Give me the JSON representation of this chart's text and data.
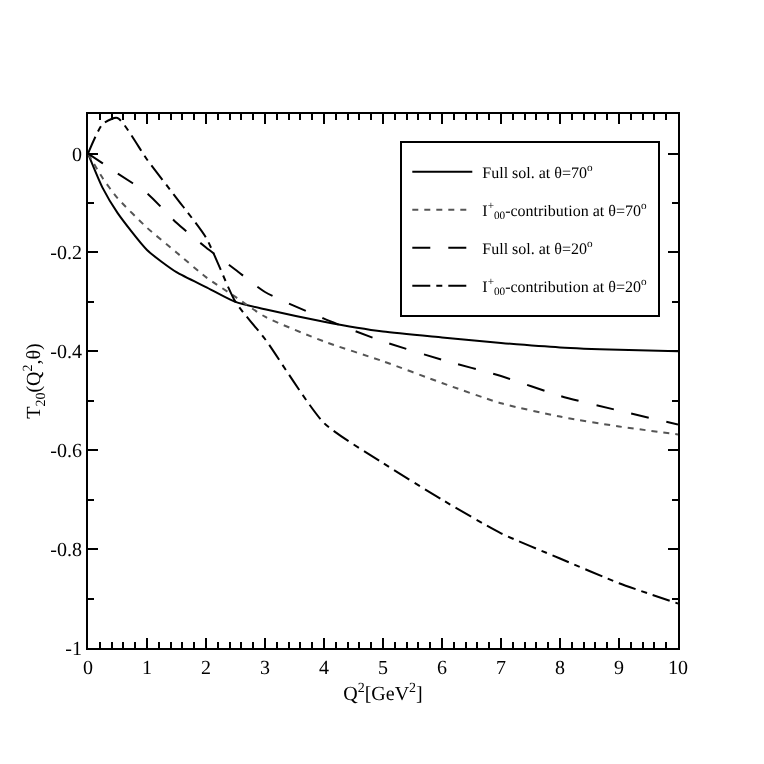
{
  "chart_data": {
    "type": "line",
    "xlabel": "Q$^{2}$[GeV$^{2}$]",
    "ylabel": "T$_{20}$(Q$^{2}$,θ)",
    "x": [
      0,
      0.25,
      0.5,
      1,
      1.5,
      2,
      2.5,
      3,
      4,
      5,
      6,
      7,
      8,
      9,
      10
    ],
    "series": [
      {
        "name": "Full sol. at θ=70$^{o}$",
        "color": "#000000",
        "line_style": "solid",
        "values": [
          0,
          -0.07,
          -0.12,
          -0.195,
          -0.24,
          -0.27,
          -0.3,
          -0.315,
          -0.34,
          -0.36,
          -0.372,
          -0.383,
          -0.392,
          -0.397,
          -0.4
        ]
      },
      {
        "name": "I$^{+}$$_{00}$-contribution at θ=70$^{o}$",
        "color": "#555555",
        "line_style": "dotted",
        "values": [
          0,
          -0.05,
          -0.09,
          -0.15,
          -0.2,
          -0.25,
          -0.29,
          -0.33,
          -0.38,
          -0.42,
          -0.464,
          -0.505,
          -0.532,
          -0.552,
          -0.568
        ]
      },
      {
        "name": "Full sol. at θ=20$^{o}$",
        "color": "#000000",
        "line_style": "dashed",
        "values": [
          0,
          -0.02,
          -0.04,
          -0.08,
          -0.14,
          -0.19,
          -0.235,
          -0.28,
          -0.334,
          -0.38,
          -0.417,
          -0.45,
          -0.49,
          -0.52,
          -0.548
        ]
      },
      {
        "name": "I$^{+}$$_{00}$-contribution at θ=20$^{o}$",
        "color": "#000000",
        "line_style": "dashdot",
        "values": [
          0,
          0.06,
          0.072,
          -0.012,
          -0.09,
          -0.17,
          -0.3,
          -0.375,
          -0.545,
          -0.626,
          -0.7,
          -0.768,
          -0.819,
          -0.869,
          -0.91
        ]
      }
    ],
    "xlim": [
      0,
      10
    ],
    "xticks": [
      0,
      1,
      2,
      3,
      4,
      5,
      6,
      7,
      8,
      9,
      10
    ],
    "ylim": [
      -1,
      0.08
    ],
    "yticks": [
      0,
      -0.2,
      -0.4,
      -0.6,
      -0.8,
      -1
    ],
    "legend": "top right",
    "marker": "none"
  }
}
